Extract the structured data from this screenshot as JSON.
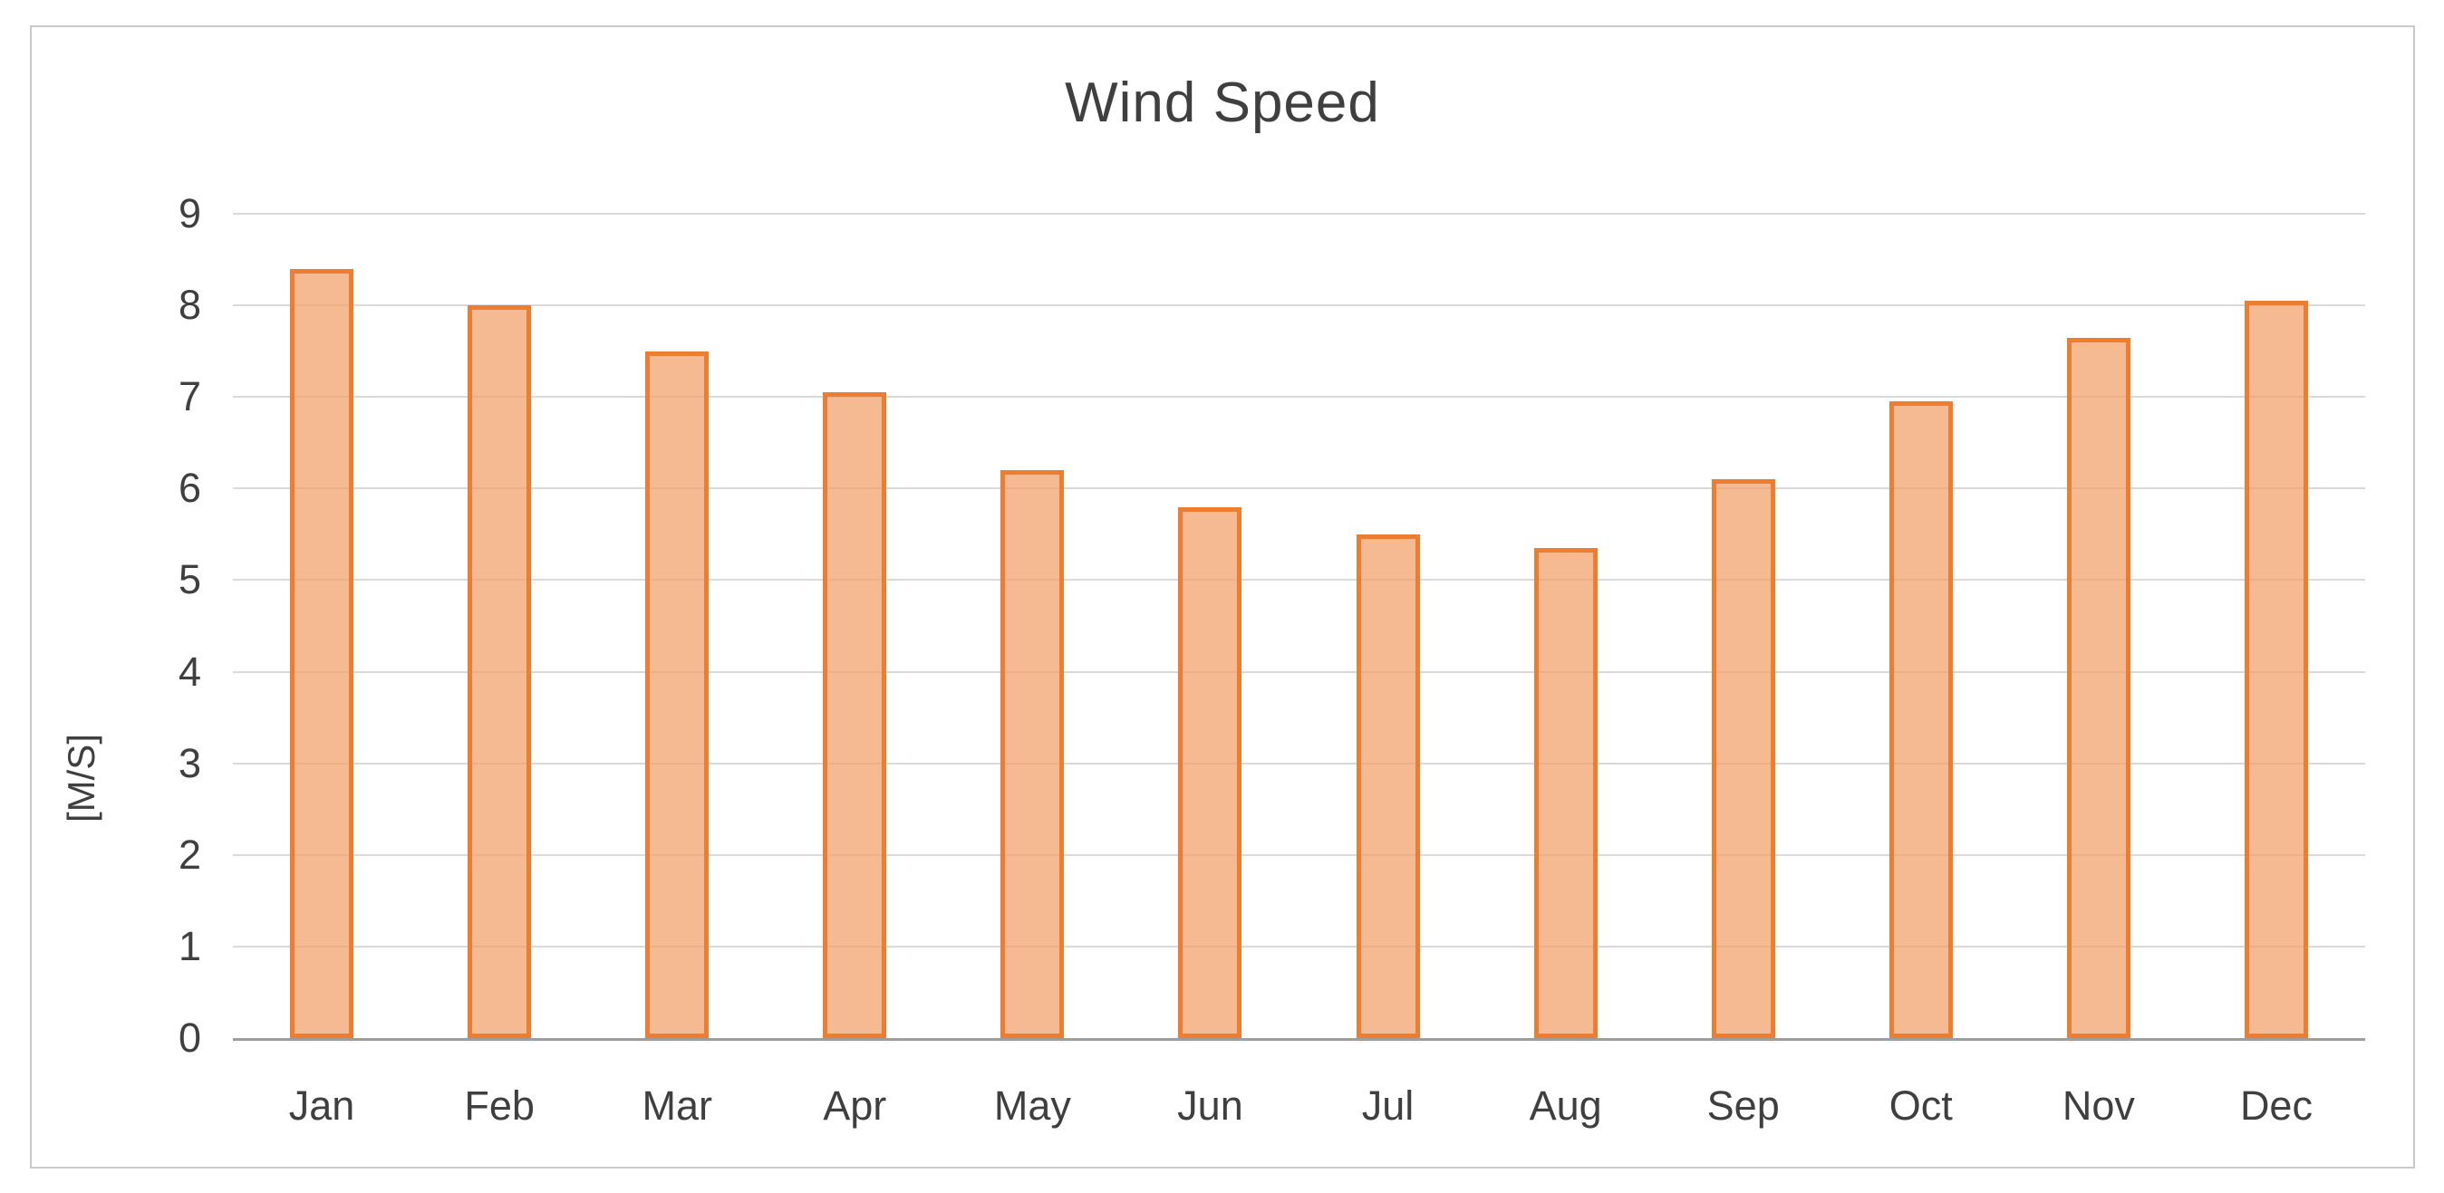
{
  "chart_data": {
    "type": "bar",
    "title": "Wind Speed",
    "xlabel": "",
    "ylabel": "[M/S]",
    "categories": [
      "Jan",
      "Feb",
      "Mar",
      "Apr",
      "May",
      "Jun",
      "Jul",
      "Aug",
      "Sep",
      "Oct",
      "Nov",
      "Dec"
    ],
    "values": [
      8.4,
      8.0,
      7.5,
      7.05,
      6.2,
      5.8,
      5.5,
      5.35,
      6.1,
      6.95,
      7.65,
      8.05
    ],
    "ylim": [
      0,
      9
    ],
    "yticks": [
      0,
      1,
      2,
      3,
      4,
      5,
      6,
      7,
      8,
      9
    ],
    "grid": true,
    "legend": false,
    "colors": {
      "bar_fill": "#F5AF85",
      "bar_border": "#ED7D31",
      "gridline": "#D9D9D9",
      "axis_line": "#9D9D9D",
      "text": "#3F3F3F",
      "frame_border": "#C9C9C9",
      "background": "#FFFFFF"
    }
  }
}
